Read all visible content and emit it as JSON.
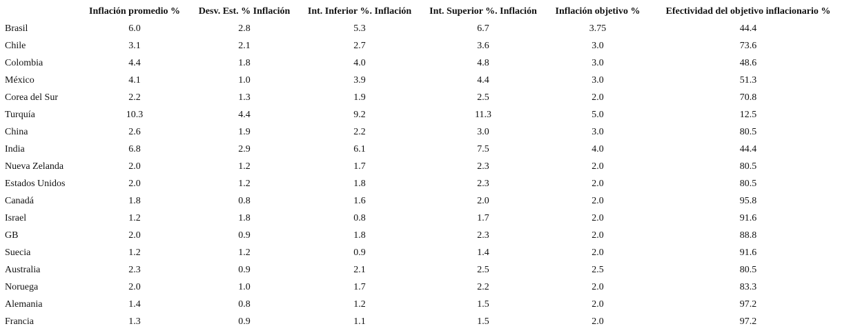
{
  "table": {
    "header": [
      "Inflación promedio %",
      "Desv. Est. % Inflación",
      "Int. Inferior %. Inflación",
      "Int. Superior %. Inflación",
      "Inflación objetivo %",
      "Efectividad del objetivo inflacionario %"
    ],
    "rows": [
      [
        "Brasil",
        "6.0",
        "2.8",
        "5.3",
        "6.7",
        "3.75",
        "44.4"
      ],
      [
        "Chile",
        "3.1",
        "2.1",
        "2.7",
        "3.6",
        "3.0",
        "73.6"
      ],
      [
        "Colombia",
        "4.4",
        "1.8",
        "4.0",
        "4.8",
        "3.0",
        "48.6"
      ],
      [
        "México",
        "4.1",
        "1.0",
        "3.9",
        "4.4",
        "3.0",
        "51.3"
      ],
      [
        "Corea del Sur",
        "2.2",
        "1.3",
        "1.9",
        "2.5",
        "2.0",
        "70.8"
      ],
      [
        "Turquía",
        "10.3",
        "4.4",
        "9.2",
        "11.3",
        "5.0",
        "12.5"
      ],
      [
        "China",
        "2.6",
        "1.9",
        "2.2",
        "3.0",
        "3.0",
        "80.5"
      ],
      [
        "India",
        "6.8",
        "2.9",
        "6.1",
        "7.5",
        "4.0",
        "44.4"
      ],
      [
        "Nueva Zelanda",
        "2.0",
        "1.2",
        "1.7",
        "2.3",
        "2.0",
        "80.5"
      ],
      [
        "Estados Unidos",
        "2.0",
        "1.2",
        "1.8",
        "2.3",
        "2.0",
        "80.5"
      ],
      [
        "Canadá",
        "1.8",
        "0.8",
        "1.6",
        "2.0",
        "2.0",
        "95.8"
      ],
      [
        "Israel",
        "1.2",
        "1.8",
        "0.8",
        "1.7",
        "2.0",
        "91.6"
      ],
      [
        "GB",
        "2.0",
        "0.9",
        "1.8",
        "2.3",
        "2.0",
        "88.8"
      ],
      [
        "Suecia",
        "1.2",
        "1.2",
        "0.9",
        "1.4",
        "2.0",
        "91.6"
      ],
      [
        "Australia",
        "2.3",
        "0.9",
        "2.1",
        "2.5",
        "2.5",
        "80.5"
      ],
      [
        "Noruega",
        "2.0",
        "1.0",
        "1.7",
        "2.2",
        "2.0",
        "83.3"
      ],
      [
        "Alemania",
        "1.4",
        "0.8",
        "1.2",
        "1.5",
        "2.0",
        "97.2"
      ],
      [
        "Francia",
        "1.3",
        "0.9",
        "1.1",
        "1.5",
        "2.0",
        "97.2"
      ]
    ]
  }
}
